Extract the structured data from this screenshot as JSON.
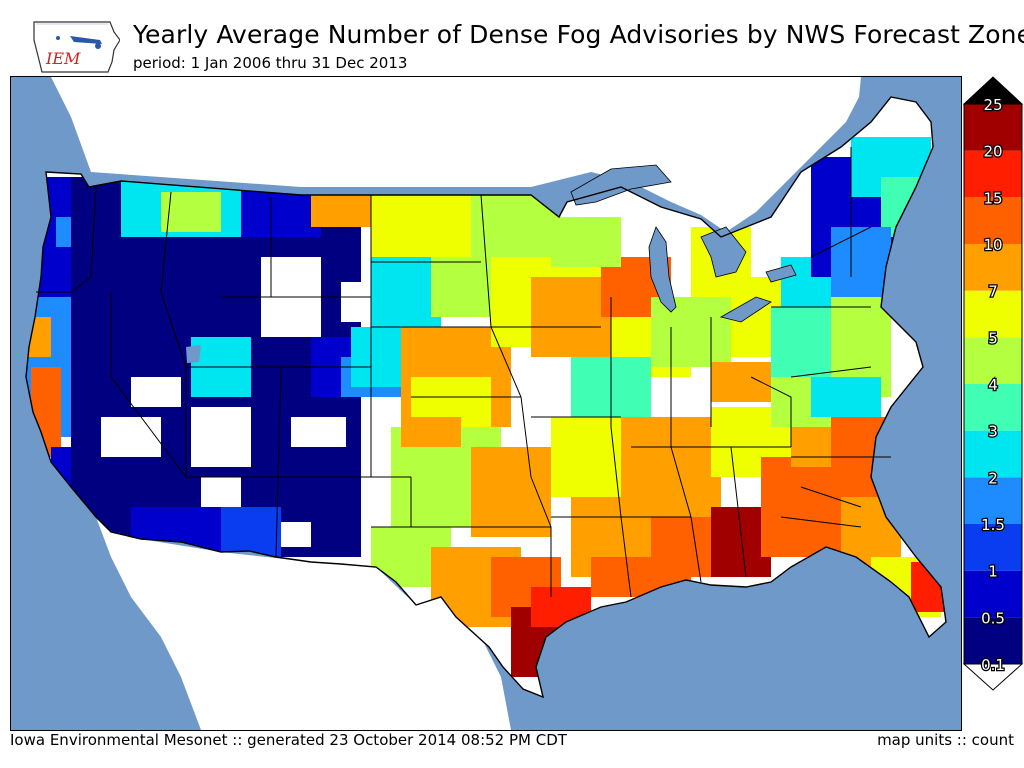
{
  "header": {
    "title": "Yearly Average Number of Dense Fog Advisories by NWS Forecast Zone",
    "subtitle": "period: 1 Jan 2006 thru 31 Dec 2013"
  },
  "logo": {
    "text": "IEM",
    "icon": "iowa-state-outline-icon"
  },
  "footer": {
    "left": "Iowa Environmental Mesonet :: generated 23 October 2014 08:52 PM CDT",
    "right": "map units :: count"
  },
  "colorbar": {
    "levels": [
      "0.1",
      "0.5",
      "1",
      "1.5",
      "2",
      "3",
      "4",
      "5",
      "7",
      "10",
      "15",
      "20",
      "25"
    ],
    "colors": [
      "#000080",
      "#0000cd",
      "#0a3cf0",
      "#1e8cff",
      "#00e6f0",
      "#40ffb4",
      "#b4ff40",
      "#f0ff00",
      "#ffa000",
      "#ff6000",
      "#ff1e00",
      "#a00000"
    ],
    "over_color": "#000000",
    "under_color": "#ffffff"
  },
  "map": {
    "ocean_color": "#6f99c8",
    "land_color": "#ffffff",
    "region": "Continental United States"
  }
}
